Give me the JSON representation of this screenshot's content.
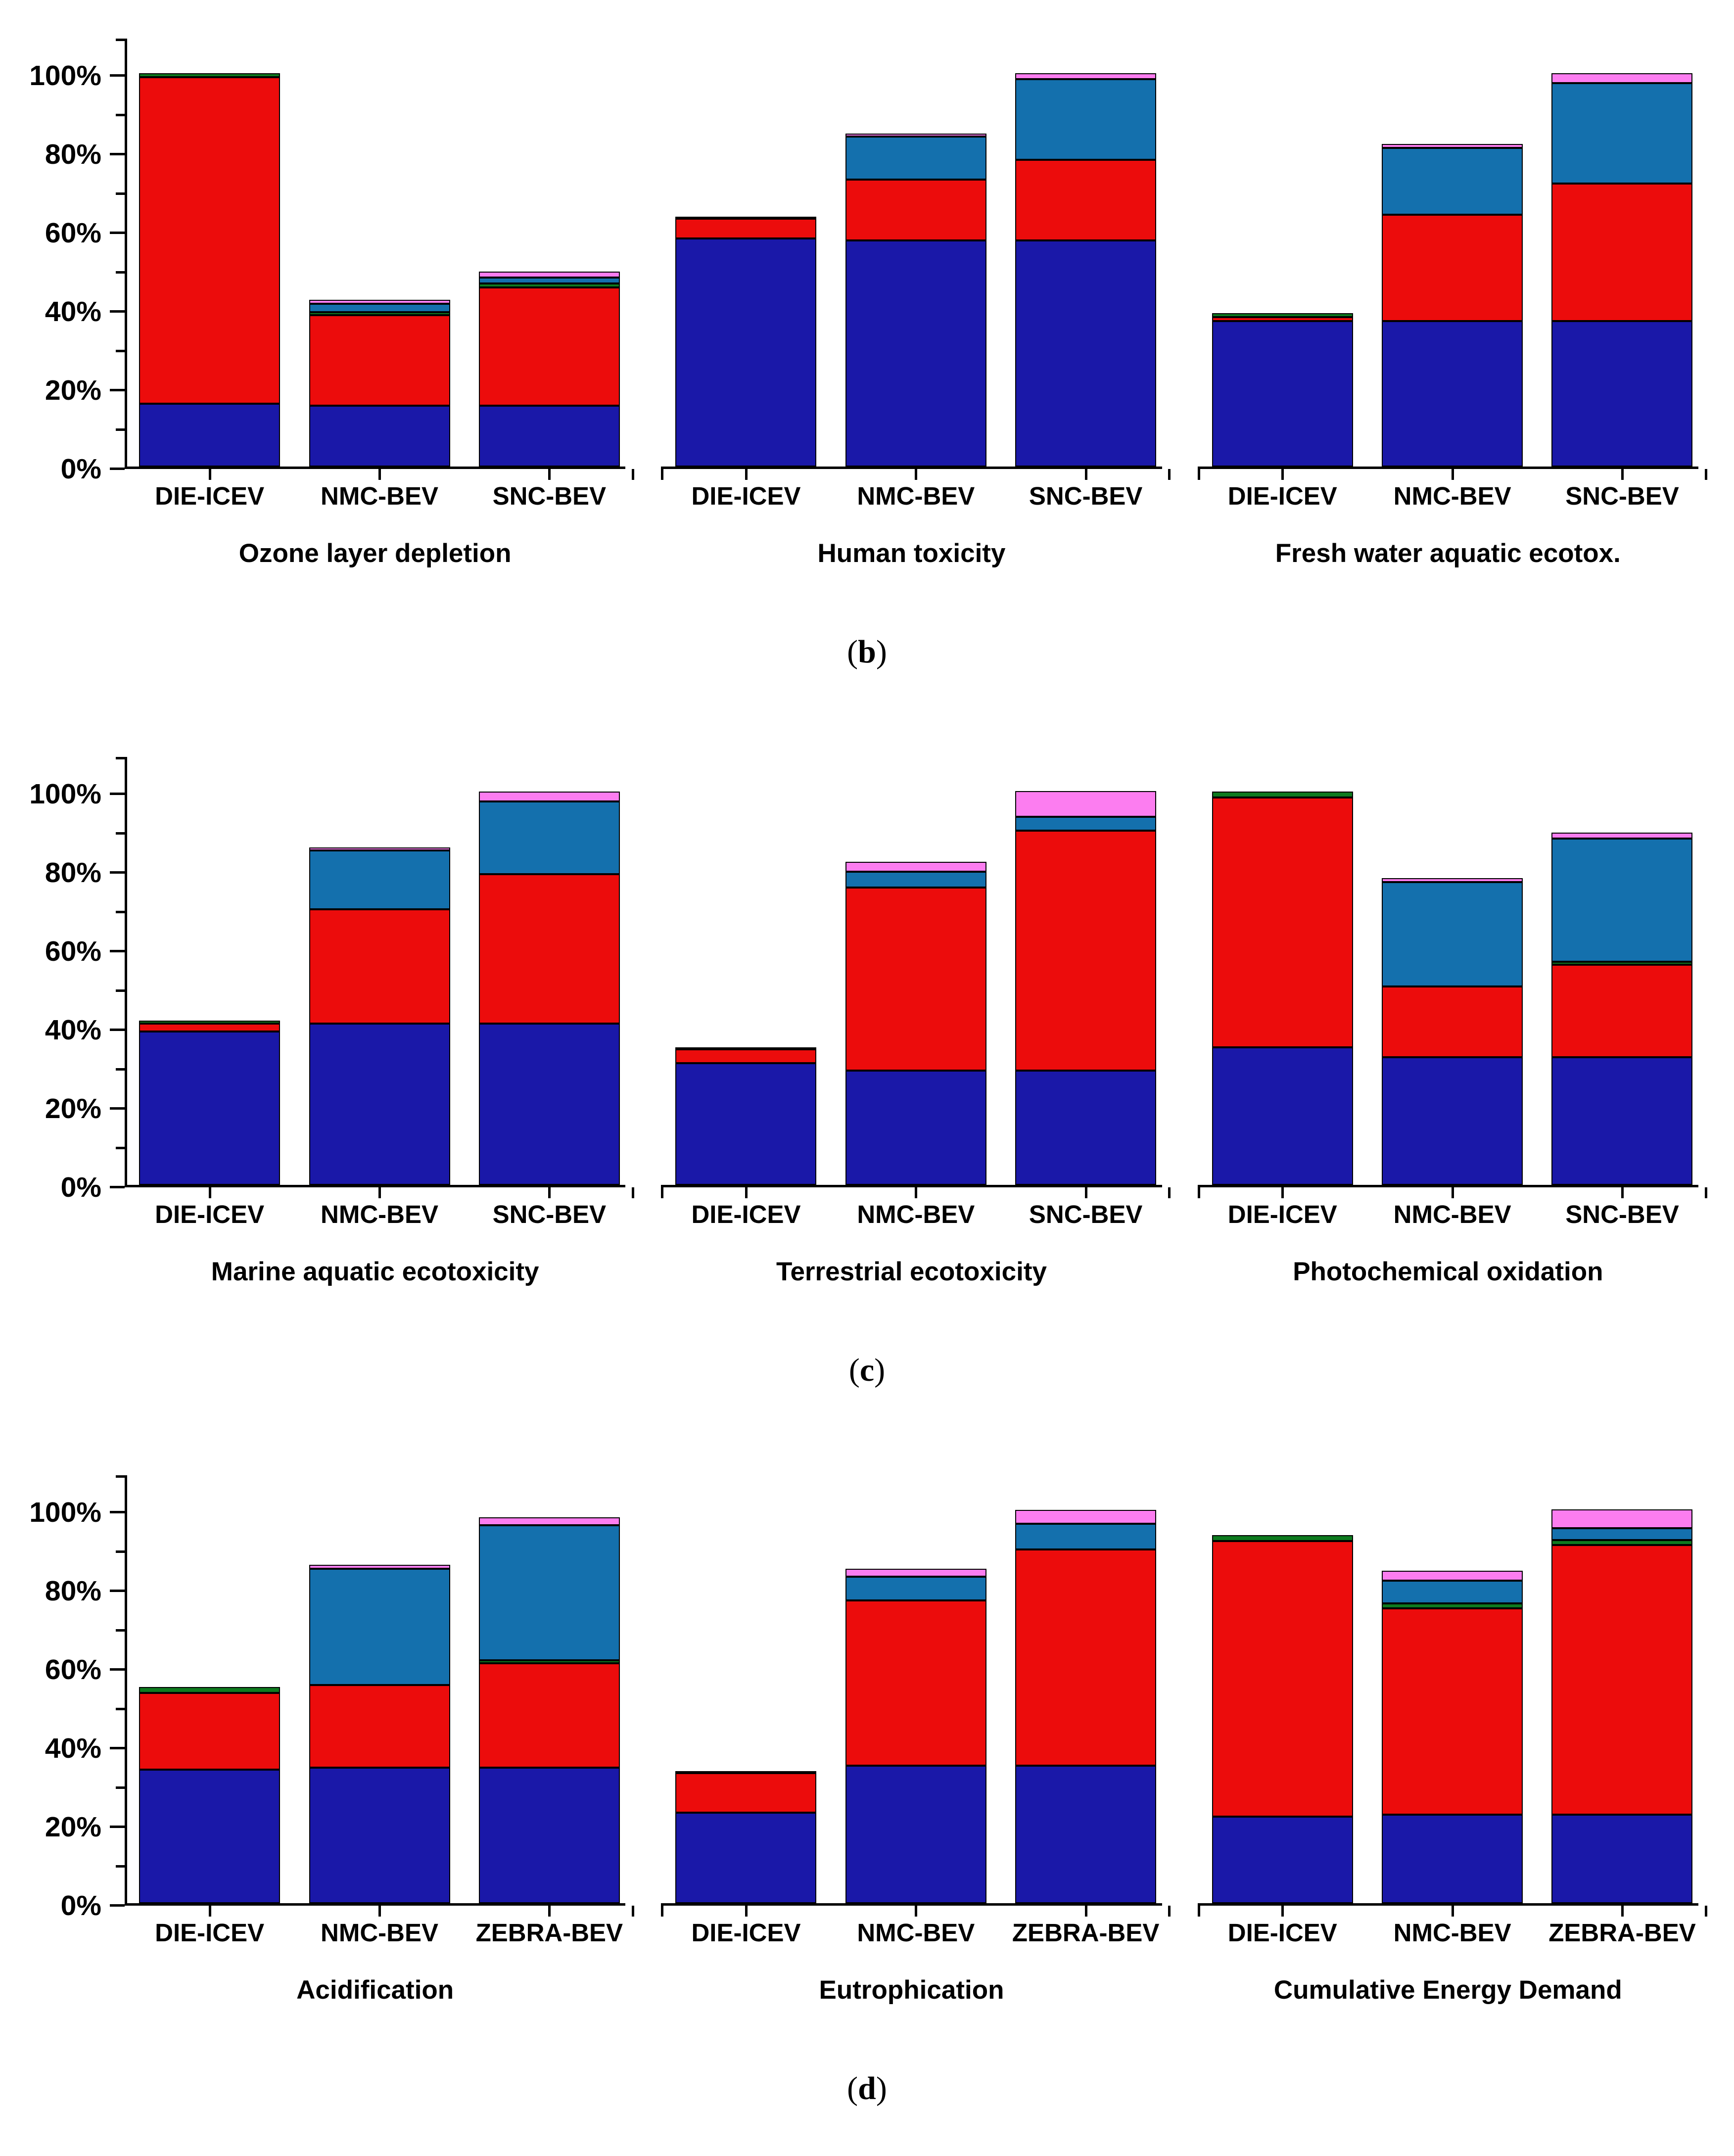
{
  "chart_data": {
    "type": "bar",
    "stacked": true,
    "unit": "%",
    "ylim": [
      0,
      100
    ],
    "y_major_step": 20,
    "y_minor_step": 10,
    "grid": false,
    "legend": "none",
    "y_tick_labels": [
      "0%",
      "20%",
      "40%",
      "60%",
      "80%",
      "100%"
    ],
    "series_order": [
      "navy",
      "red",
      "green",
      "blue",
      "magenta"
    ],
    "series_colors": {
      "navy": "#1a18a8",
      "red": "#ec0c0c",
      "green": "#0e7a1f",
      "blue": "#1470ad",
      "magenta": "#fc7df0"
    },
    "rows": [
      {
        "caption_open": "(",
        "caption_letter": "b",
        "caption_close": ")",
        "panels": [
          {
            "title": "Ozone layer depletion",
            "categories": [
              "DIE-ICEV",
              "NMC-BEV",
              "SNC-BEV"
            ],
            "bars": [
              [
                16,
                83,
                1,
                0,
                0
              ],
              [
                15.5,
                23,
                0.8,
                2.2,
                1
              ],
              [
                15.5,
                30,
                1,
                1.5,
                1.5
              ]
            ]
          },
          {
            "title": "Human toxicity",
            "categories": [
              "DIE-ICEV",
              "NMC-BEV",
              "SNC-BEV"
            ],
            "bars": [
              [
                58,
                5,
                0.5,
                0,
                0
              ],
              [
                57.5,
                15.5,
                0,
                11,
                0.7
              ],
              [
                57.5,
                20.5,
                0,
                20.5,
                1.5
              ]
            ]
          },
          {
            "title": "Fresh water aquatic ecotox.",
            "categories": [
              "DIE-ICEV",
              "NMC-BEV",
              "SNC-BEV"
            ],
            "bars": [
              [
                37,
                1,
                1,
                0,
                0
              ],
              [
                37,
                27,
                0,
                17,
                1
              ],
              [
                37,
                35,
                0,
                25.5,
                2.5
              ]
            ]
          }
        ]
      },
      {
        "caption_open": "(",
        "caption_letter": "c",
        "caption_close": ")",
        "panels": [
          {
            "title": "Marine aquatic ecotoxicity",
            "categories": [
              "DIE-ICEV",
              "NMC-BEV",
              "SNC-BEV"
            ],
            "bars": [
              [
                39,
                2,
                0.8,
                0,
                0
              ],
              [
                41,
                29,
                0,
                15,
                0.8
              ],
              [
                41,
                38,
                0,
                18.5,
                2.5
              ]
            ]
          },
          {
            "title": "Terrestrial ecotoxicity",
            "categories": [
              "DIE-ICEV",
              "NMC-BEV",
              "SNC-BEV"
            ],
            "bars": [
              [
                31,
                3.5,
                0.5,
                0,
                0
              ],
              [
                29,
                46.5,
                0,
                4,
                2.5
              ],
              [
                29,
                61,
                0,
                3.5,
                6.5
              ]
            ]
          },
          {
            "title": "Photochemical oxidation",
            "categories": [
              "DIE-ICEV",
              "NMC-BEV",
              "SNC-BEV"
            ],
            "bars": [
              [
                35,
                63.5,
                1.5,
                0,
                0
              ],
              [
                32.5,
                18,
                0,
                26.5,
                1
              ],
              [
                32.5,
                23.5,
                0.7,
                31.3,
                1.5
              ]
            ]
          }
        ]
      },
      {
        "caption_open": "(",
        "caption_letter": "d",
        "caption_close": ")",
        "panels": [
          {
            "title": "Acidification",
            "categories": [
              "DIE-ICEV",
              "NMC-BEV",
              "ZEBRA-BEV"
            ],
            "bars": [
              [
                34,
                19.5,
                1.5,
                0,
                0
              ],
              [
                34.5,
                21,
                0,
                29.5,
                1
              ],
              [
                34.5,
                26.5,
                0.7,
                34.3,
                2
              ]
            ]
          },
          {
            "title": "Eutrophication",
            "categories": [
              "DIE-ICEV",
              "NMC-BEV",
              "ZEBRA-BEV"
            ],
            "bars": [
              [
                23,
                10,
                0.5,
                0,
                0
              ],
              [
                35,
                42,
                0,
                6,
                2
              ],
              [
                35,
                55,
                0,
                6.5,
                3.5
              ]
            ]
          },
          {
            "title": "Cumulative Energy Demand",
            "categories": [
              "DIE-ICEV",
              "NMC-BEV",
              "ZEBRA-BEV"
            ],
            "bars": [
              [
                22,
                70,
                1.5,
                0,
                0
              ],
              [
                22.5,
                52.5,
                1.2,
                5.8,
                2.5
              ],
              [
                22.5,
                68.5,
                1.2,
                3,
                4.8
              ]
            ]
          }
        ]
      }
    ]
  }
}
